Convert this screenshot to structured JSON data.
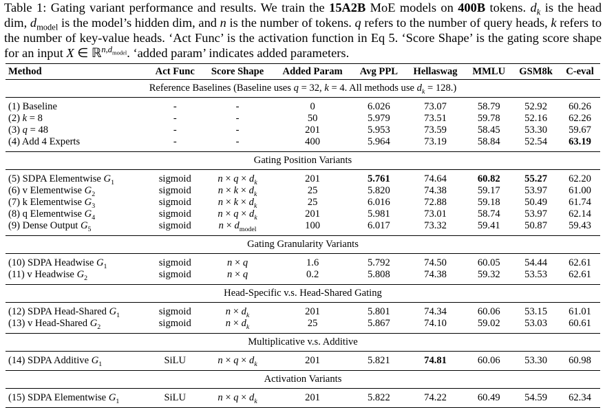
{
  "caption": "Table 1: Gating variant performance and results. We train the <b>15A2B</b> MoE models on <b>400B</b> tokens. <i>d<sub>k</sub></i> is the head dim, <i>d</i><sub>model</sub> is the model’s hidden dim, and <i>n</i> is the number of tokens. <i>q</i> refers to the number of query heads, <i>k</i> refers to the number of key-value heads. ‘Act Func’ is the activation function in Eq 5. ‘Score Shape’ is the gating score shape for an input <i>X</i> ∈ ℝ<sup><i>n</i>,<i>d</i><sub>model</sub></sup>. ‘added param’ indicates added parameters.",
  "header": [
    "Method",
    "Act Func",
    "Score Shape",
    "Added Param",
    "Avg PPL",
    "Hellaswag",
    "MMLU",
    "GSM8k",
    "C-eval"
  ],
  "sections": [
    {
      "title": "Reference Baselines (Baseline uses <i>q</i> = 32, <i>k</i> = 4. All methods use <i>d<sub>k</sub></i> = 128.)",
      "rows": [
        [
          "(1) Baseline",
          "-",
          "-",
          "0",
          "6.026",
          "73.07",
          "58.79",
          "52.92",
          "60.26"
        ],
        [
          "(2) <i>k</i> = 8",
          "-",
          "-",
          "50",
          "5.979",
          "73.51",
          "59.78",
          "52.16",
          "62.26"
        ],
        [
          "(3) <i>q</i> = 48",
          "-",
          "-",
          "201",
          "5.953",
          "73.59",
          "58.45",
          "53.30",
          "59.67"
        ],
        [
          "(4) Add 4 Experts",
          "-",
          "-",
          "400",
          "5.964",
          "73.19",
          "58.84",
          "52.54",
          "<b>63.19</b>"
        ]
      ]
    },
    {
      "title": "Gating Position Variants",
      "rows": [
        [
          "(5) SDPA Elementwise <i>G</i><sub>1</sub>",
          "sigmoid",
          "<i>n</i> × <i>q</i> × <i>d<sub>k</sub></i>",
          "201",
          "<b>5.761</b>",
          "74.64",
          "<b>60.82</b>",
          "<b>55.27</b>",
          "62.20"
        ],
        [
          "(6) v Elementwise <i>G</i><sub>2</sub>",
          "sigmoid",
          "<i>n</i> × <i>k</i> × <i>d<sub>k</sub></i>",
          "25",
          "5.820",
          "74.38",
          "59.17",
          "53.97",
          "61.00"
        ],
        [
          "(7) k Elementwise <i>G</i><sub>3</sub>",
          "sigmoid",
          "<i>n</i> × <i>k</i> × <i>d<sub>k</sub></i>",
          "25",
          "6.016",
          "72.88",
          "59.18",
          "50.49",
          "61.74"
        ],
        [
          "(8) q Elementwise <i>G</i><sub>4</sub>",
          "sigmoid",
          "<i>n</i> × <i>q</i> × <i>d<sub>k</sub></i>",
          "201",
          "5.981",
          "73.01",
          "58.74",
          "53.97",
          "62.14"
        ],
        [
          "(9) Dense Output <i>G</i><sub>5</sub>",
          "sigmoid",
          "<i>n</i> × <i>d</i><sub>model</sub>",
          "100",
          "6.017",
          "73.32",
          "59.41",
          "50.87",
          "59.43"
        ]
      ]
    },
    {
      "title": "Gating Granularity Variants",
      "rows": [
        [
          "(10) SDPA Headwise <i>G</i><sub>1</sub>",
          "sigmoid",
          "<i>n</i> × <i>q</i>",
          "1.6",
          "5.792",
          "74.50",
          "60.05",
          "54.44",
          "62.61"
        ],
        [
          "(11) v Headwise <i>G</i><sub>2</sub>",
          "sigmoid",
          "<i>n</i> × <i>q</i>",
          "0.2",
          "5.808",
          "74.38",
          "59.32",
          "53.53",
          "62.61"
        ]
      ]
    },
    {
      "title": "Head-Specific v.s. Head-Shared Gating",
      "rows": [
        [
          "(12) SDPA Head-Shared <i>G</i><sub>1</sub>",
          "sigmoid",
          "<i>n</i> × <i>d<sub>k</sub></i>",
          "201",
          "5.801",
          "74.34",
          "60.06",
          "53.15",
          "61.01"
        ],
        [
          "(13) v Head-Shared <i>G</i><sub>2</sub>",
          "sigmoid",
          "<i>n</i> × <i>d<sub>k</sub></i>",
          "25",
          "5.867",
          "74.10",
          "59.02",
          "53.03",
          "60.61"
        ]
      ]
    },
    {
      "title": "Multiplicative v.s. Additive",
      "rows": [
        [
          "(14) SDPA Additive <i>G</i><sub>1</sub>",
          "SiLU",
          "<i>n</i> × <i>q</i> × <i>d<sub>k</sub></i>",
          "201",
          "5.821",
          "<b>74.81</b>",
          "60.06",
          "53.30",
          "60.98"
        ]
      ]
    },
    {
      "title": "Activation Variants",
      "rows": [
        [
          "(15) SDPA Elementwise <i>G</i><sub>1</sub>",
          "SiLU",
          "<i>n</i> × <i>q</i> × <i>d<sub>k</sub></i>",
          "201",
          "5.822",
          "74.22",
          "60.49",
          "54.59",
          "62.34"
        ]
      ]
    }
  ]
}
